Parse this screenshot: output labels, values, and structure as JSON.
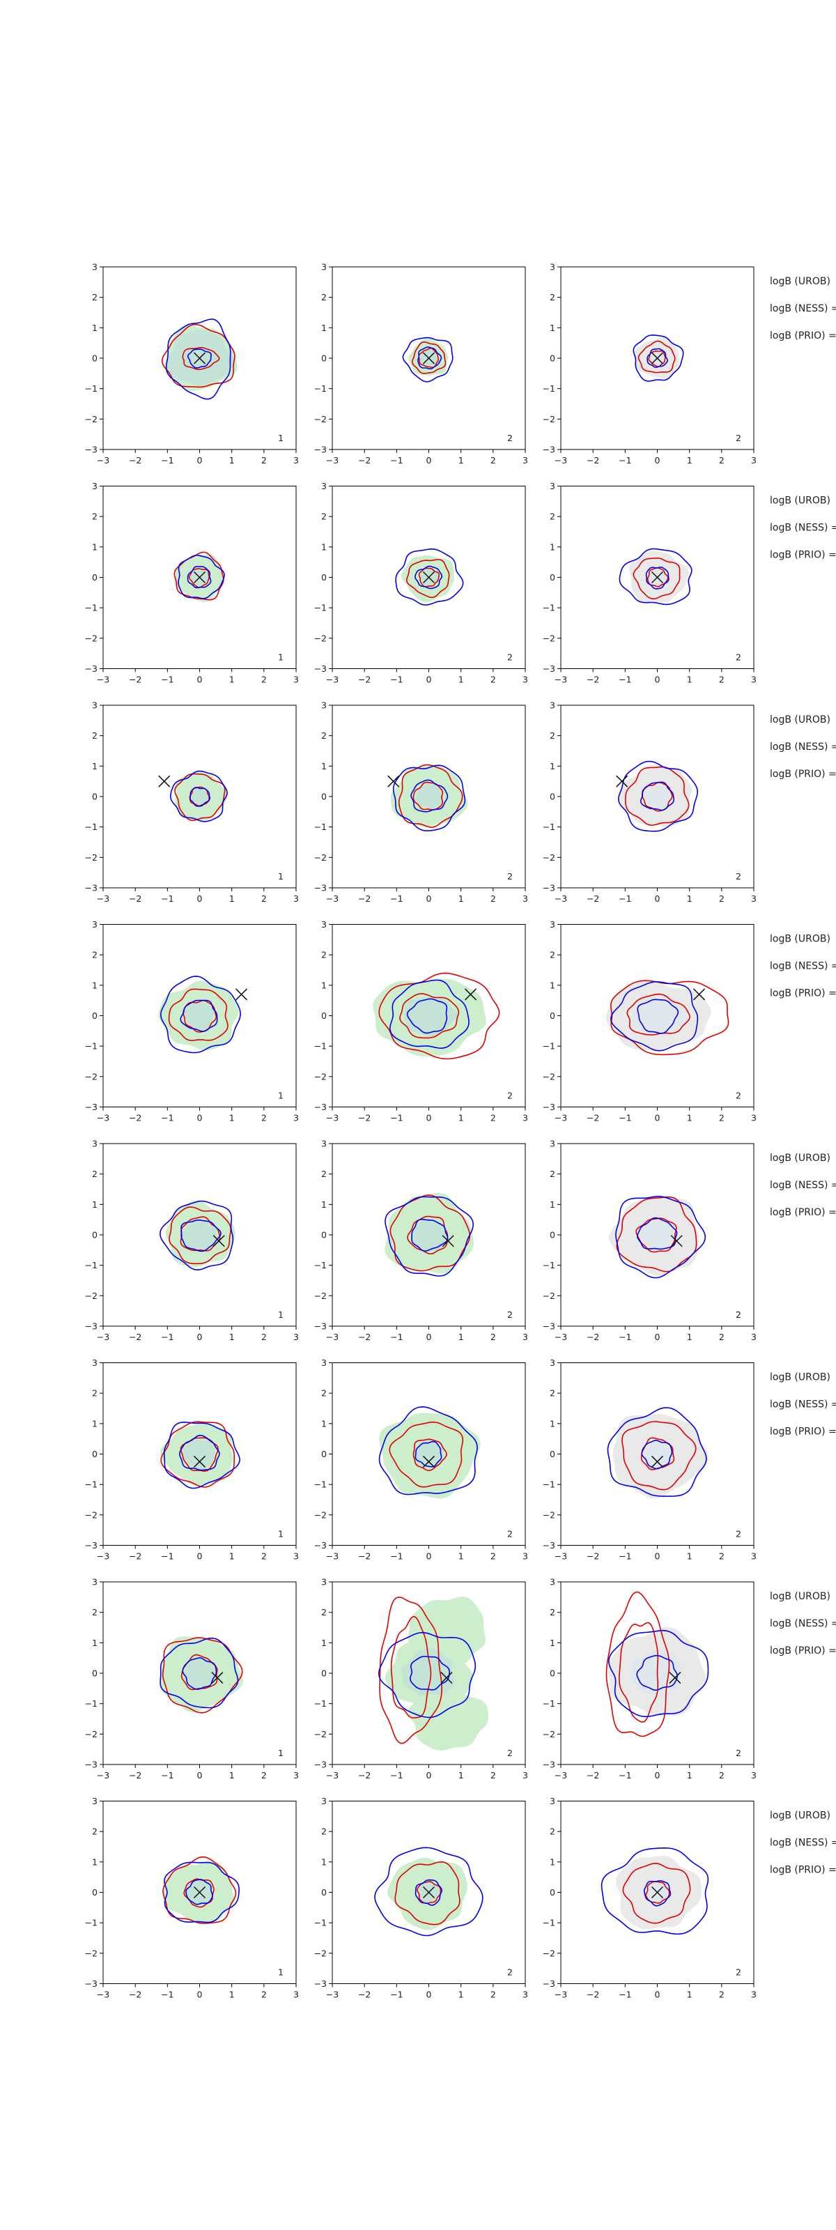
{
  "figure": {
    "rows": 8,
    "cols": 3,
    "side_labels": [
      "logB (UROB)",
      "logB (NESS) =",
      "logB (PRIO) ="
    ]
  },
  "colors": {
    "outer": "#0000ee",
    "inner": "#e00000",
    "fill_green": "#cdeecd",
    "fill_grey": "#e9e9e9",
    "marker": "#111111",
    "axis": "#000000"
  },
  "chart_data": {
    "type": "contour",
    "xlim": [
      -3,
      3
    ],
    "ylim": [
      -3,
      3
    ],
    "xticks": [
      "−3",
      "−2",
      "−1",
      "0",
      "1",
      "2",
      "3"
    ],
    "yticks": [
      "−3",
      "−2",
      "−1",
      "0",
      "1",
      "2",
      "3"
    ],
    "panel_corner_labels": [
      "1",
      "2",
      "2"
    ],
    "true_values": [
      {
        "x": 0.0,
        "y": 0.0
      },
      {
        "x": 0.0,
        "y": 0.0
      },
      {
        "x": -1.1,
        "y": 0.5
      },
      {
        "x": 1.3,
        "y": 0.7
      },
      {
        "x": 0.6,
        "y": -0.2
      },
      {
        "x": 0.0,
        "y": -0.25
      },
      {
        "x": 0.55,
        "y": -0.15
      },
      {
        "x": 0.0,
        "y": 0.0
      }
    ],
    "contours": [
      [
        {
          "blue": [
            1.0,
            1.25,
            0.35,
            0.3
          ],
          "red": [
            0.55,
            0.35,
            1.1,
            1.0
          ],
          "fill": [
            1.1,
            1.05
          ],
          "fill_color": "green"
        },
        {
          "blue": [
            0.75,
            0.7,
            0.35,
            0.35
          ],
          "red": [
            0.5,
            0.5,
            0.3,
            0.3
          ],
          "fill": [
            0.6,
            0.6
          ],
          "fill_color": "green"
        },
        {
          "blue": [
            0.75,
            0.75,
            0.3,
            0.3
          ],
          "red": [
            0.55,
            0.5,
            0.25,
            0.25
          ],
          "fill": [
            0.7,
            0.65
          ],
          "fill_color": "grey"
        }
      ],
      [
        {
          "blue": [
            0.7,
            0.7,
            0.35,
            0.35
          ],
          "red": [
            0.75,
            0.75,
            0.3,
            0.3
          ],
          "fill": [
            0.75,
            0.75
          ],
          "fill_color": "green"
        },
        {
          "blue": [
            1.0,
            0.9,
            0.4,
            0.35
          ],
          "red": [
            0.65,
            0.6,
            0.3,
            0.3
          ],
          "fill": [
            0.8,
            0.75
          ],
          "fill_color": "green"
        },
        {
          "blue": [
            1.1,
            0.9,
            0.35,
            0.35
          ],
          "red": [
            0.7,
            0.65,
            0.3,
            0.3
          ],
          "fill": [
            0.9,
            0.85
          ],
          "fill_color": "grey"
        }
      ],
      [
        {
          "blue": [
            0.85,
            0.8,
            0.3,
            0.3
          ],
          "red": [
            0.75,
            0.75,
            0.3,
            0.3
          ],
          "fill": [
            0.8,
            0.8
          ],
          "fill_color": "green"
        },
        {
          "blue": [
            1.1,
            1.05,
            0.55,
            0.5
          ],
          "red": [
            0.95,
            1.0,
            0.45,
            0.45
          ],
          "fill": [
            1.15,
            1.0
          ],
          "fill_color": "green"
        },
        {
          "blue": [
            1.2,
            1.1,
            0.5,
            0.45
          ],
          "red": [
            0.95,
            0.95,
            0.45,
            0.45
          ],
          "fill": [
            1.1,
            1.0
          ],
          "fill_color": "grey"
        }
      ],
      [
        {
          "blue": [
            1.2,
            1.2,
            0.55,
            0.5
          ],
          "red": [
            0.9,
            0.85,
            0.5,
            0.5
          ],
          "fill": [
            1.2,
            1.1
          ],
          "fill_color": "green"
        },
        {
          "blue": [
            1.2,
            1.1,
            0.6,
            0.55
          ],
          "red": [
            1.8,
            1.35,
            0.9,
            0.7
          ],
          "fill": [
            1.75,
            1.25
          ],
          "fill_color": "green"
        },
        {
          "blue": [
            1.3,
            1.1,
            0.6,
            0.55
          ],
          "red": [
            1.85,
            1.2,
            0.95,
            0.65
          ],
          "fill": [
            1.6,
            1.1
          ],
          "fill_color": "grey"
        }
      ],
      [
        {
          "blue": [
            1.1,
            1.1,
            0.6,
            0.5
          ],
          "red": [
            0.95,
            0.9,
            0.6,
            0.55
          ],
          "fill": [
            1.05,
            1.05
          ],
          "fill_color": "green"
        },
        {
          "blue": [
            1.3,
            1.3,
            0.55,
            0.5
          ],
          "red": [
            1.2,
            1.2,
            0.6,
            0.6
          ],
          "fill": [
            1.35,
            1.3
          ],
          "fill_color": "green"
        },
        {
          "blue": [
            1.35,
            1.3,
            0.6,
            0.5
          ],
          "red": [
            1.2,
            1.2,
            0.6,
            0.55
          ],
          "fill": [
            1.35,
            1.3
          ],
          "fill_color": "grey"
        }
      ],
      [
        {
          "blue": [
            1.15,
            1.05,
            0.6,
            0.55
          ],
          "red": [
            1.1,
            1.05,
            0.55,
            0.55
          ],
          "fill": [
            1.1,
            1.0
          ],
          "fill_color": "green"
        },
        {
          "blue": [
            1.5,
            1.4,
            0.4,
            0.4
          ],
          "red": [
            1.1,
            1.05,
            0.5,
            0.5
          ],
          "fill": [
            1.5,
            1.4
          ],
          "fill_color": "green"
        },
        {
          "blue": [
            1.5,
            1.4,
            0.45,
            0.45
          ],
          "red": [
            1.1,
            1.1,
            0.5,
            0.5
          ],
          "fill": [
            1.45,
            1.35
          ],
          "fill_color": "grey"
        }
      ],
      [
        {
          "blue": [
            1.2,
            1.1,
            0.5,
            0.5
          ],
          "red": [
            1.2,
            1.2,
            0.55,
            0.55
          ],
          "fill": [
            1.25,
            1.2
          ],
          "fill_color": "green"
        },
        {
          "blue": [
            1.45,
            1.35,
            0.6,
            0.55
          ],
          "red": [
            2.1,
            2.3,
            0.9,
            0.85
          ],
          "fill": [
            1.8,
            2.7
          ],
          "fill_color": "green"
        },
        {
          "blue": [
            1.5,
            1.4,
            0.6,
            0.55
          ],
          "red": [
            2.1,
            2.3,
            0.9,
            0.85
          ],
          "fill": [
            1.5,
            1.4
          ],
          "fill_color": "grey"
        }
      ],
      [
        {
          "blue": [
            1.15,
            1.0,
            0.4,
            0.4
          ],
          "red": [
            1.1,
            1.05,
            0.45,
            0.45
          ],
          "fill": [
            1.1,
            1.0
          ],
          "fill_color": "green"
        },
        {
          "blue": [
            1.6,
            1.4,
            0.4,
            0.4
          ],
          "red": [
            1.0,
            1.0,
            0.35,
            0.35
          ],
          "fill": [
            1.2,
            1.15
          ],
          "fill_color": "green"
        },
        {
          "blue": [
            1.65,
            1.4,
            0.4,
            0.4
          ],
          "red": [
            1.0,
            0.95,
            0.35,
            0.35
          ],
          "fill": [
            1.3,
            1.2
          ],
          "fill_color": "grey"
        }
      ]
    ]
  }
}
